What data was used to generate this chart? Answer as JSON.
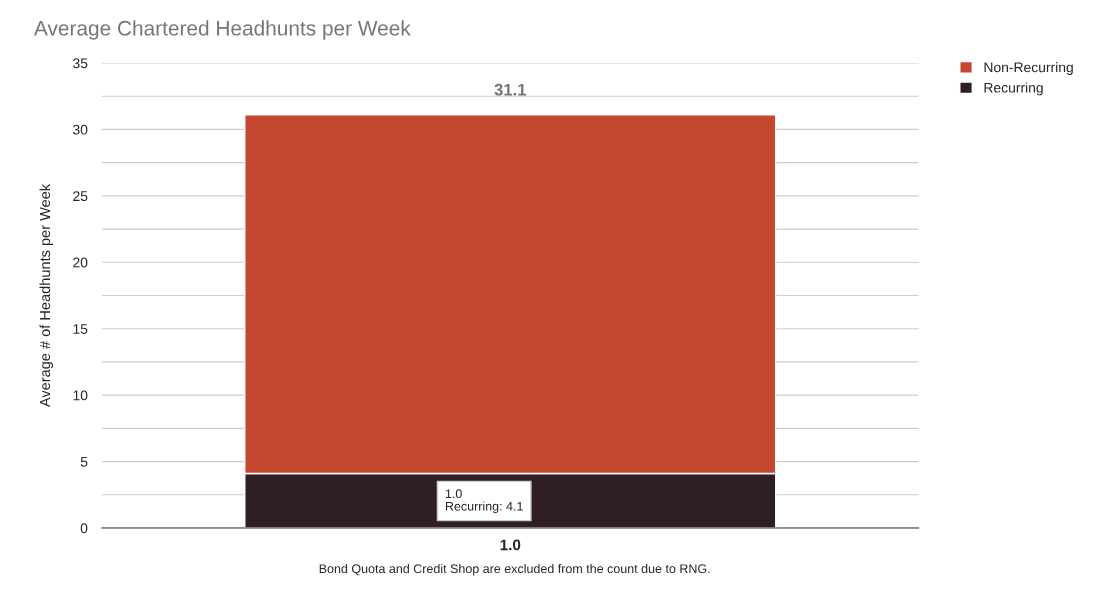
{
  "chart_data": {
    "type": "bar",
    "title": "Average Chartered Headhunts per Week",
    "ylabel": "Average # of Headhunts per Week",
    "categories": [
      "1.0"
    ],
    "stacked": true,
    "series": [
      {
        "name": "Recurring",
        "color": "#2f1f24",
        "values": [
          4.1
        ]
      },
      {
        "name": "Non-Recurring",
        "color": "#c6472f",
        "values": [
          27.0
        ]
      }
    ],
    "totals": [
      "31.1"
    ],
    "ylim": [
      0,
      35
    ],
    "yticks": [
      0,
      {
        "value": 2.5,
        "label": null
      },
      5,
      {
        "value": 7.5,
        "label": null
      },
      10,
      {
        "value": 12.5,
        "label": null
      },
      15,
      {
        "value": 17.5,
        "label": null
      },
      20,
      {
        "value": 22.5,
        "label": null
      },
      25,
      {
        "value": 27.5,
        "label": null
      },
      30,
      {
        "value": 32.5,
        "label": null
      },
      35
    ],
    "grid": "y",
    "legend": "top right",
    "annotations": [
      "1.0\nRecurring: 4.1",
      "Bond Quota and Credit Shop are excluded from the count due to RNG."
    ]
  }
}
